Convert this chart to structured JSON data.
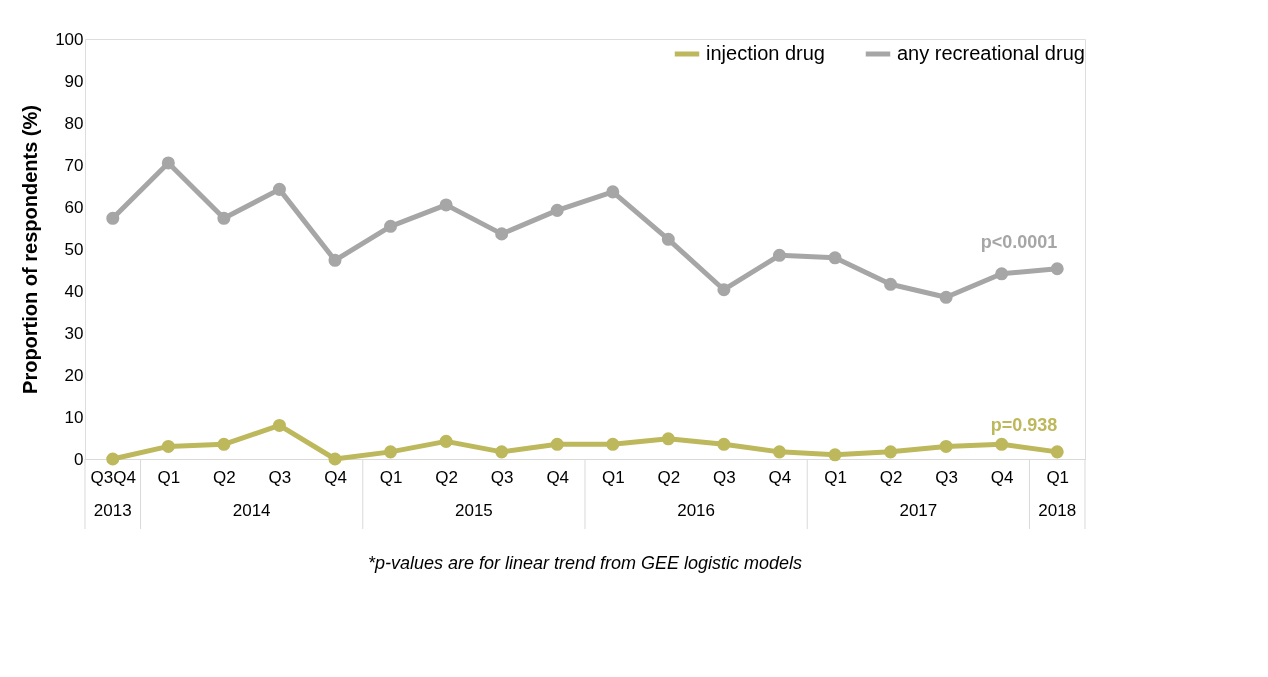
{
  "chart_data": {
    "type": "line",
    "ylabel": "Proportion of respondents (%)",
    "categories": [
      "Q3Q4",
      "Q1",
      "Q2",
      "Q3",
      "Q4",
      "Q1",
      "Q2",
      "Q3",
      "Q4",
      "Q1",
      "Q2",
      "Q3",
      "Q4",
      "Q1",
      "Q2",
      "Q3",
      "Q4",
      "Q1"
    ],
    "series": [
      {
        "name": "injection drug",
        "color": "#bdb85c",
        "values": [
          0,
          3,
          3.5,
          8,
          0,
          1.7,
          4.2,
          1.7,
          3.5,
          3.5,
          4.8,
          3.5,
          1.7,
          1.0,
          1.7,
          3,
          3.5,
          1.7
        ]
      },
      {
        "name": "any recreational drug",
        "color": "#a6a6a6",
        "values": [
          57.3,
          70.5,
          57.3,
          64.2,
          47.3,
          55.4,
          60.5,
          53.6,
          59.2,
          63.6,
          52.3,
          40.3,
          48.5,
          47.9,
          41.6,
          38.5,
          44.1,
          45.3
        ]
      }
    ],
    "ylim": [
      0,
      100
    ],
    "yticks": [
      0,
      10,
      20,
      30,
      40,
      50,
      60,
      70,
      80,
      90,
      100
    ],
    "grid": false,
    "legend": "top right",
    "marker": "circle",
    "line_style": "solid",
    "annotations": [
      "p=0.938",
      "p<0.0001",
      "2013",
      "2014",
      "2015",
      "2016",
      "2017",
      "2018",
      "*p-values are for linear trend from GEE logistic models"
    ]
  }
}
